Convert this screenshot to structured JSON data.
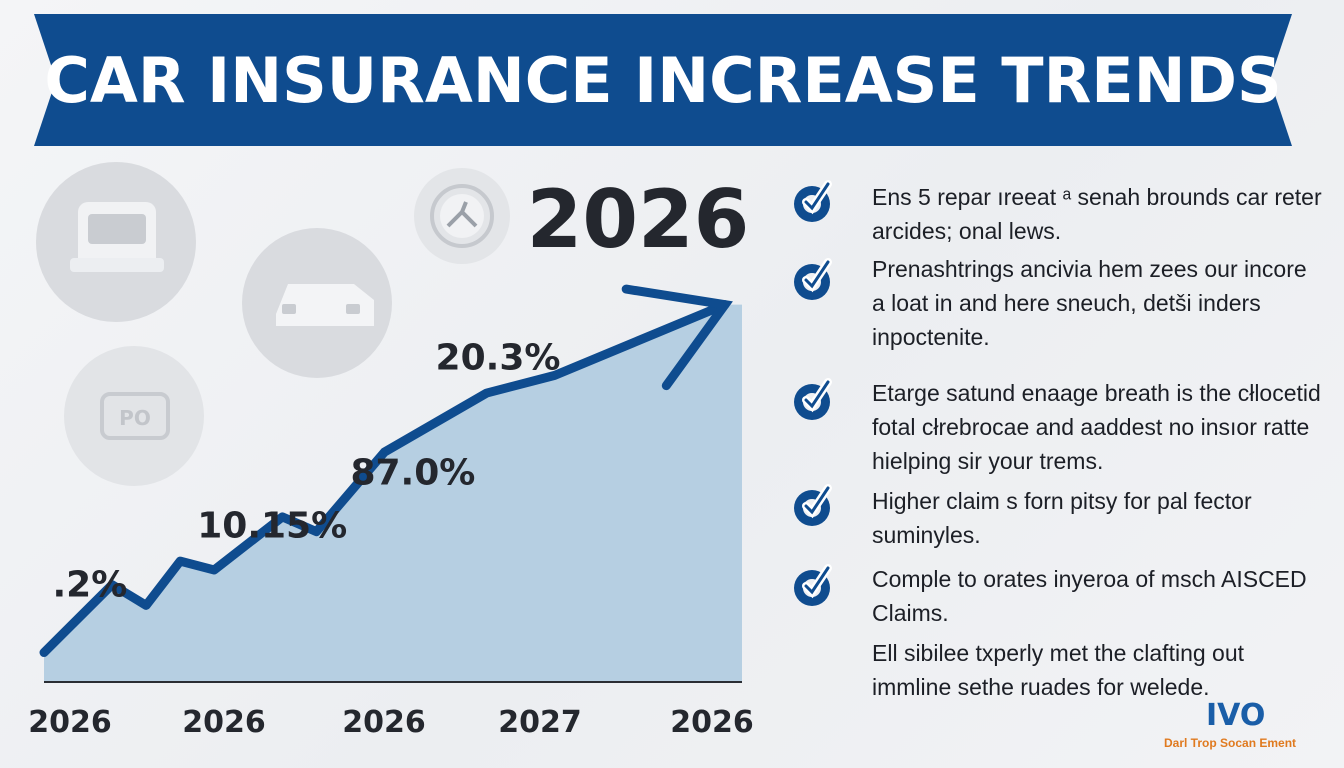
{
  "banner": {
    "title": "CAR INSURANCE INCREASE TRENDS",
    "color": "#0f4c8f"
  },
  "chart_data": {
    "type": "area",
    "title": "2026",
    "categories": [
      "2026",
      "2026",
      "2026",
      "2027",
      "2026"
    ],
    "series": [
      {
        "values": [
          1.0,
          3.3,
          2.6,
          4.1,
          3.8,
          5.6,
          5.1,
          7.8,
          9.8,
          10.4,
          12.8
        ]
      }
    ],
    "x": [
      0,
      0.4,
      0.6,
      0.8,
      1.0,
      1.4,
      1.6,
      2.0,
      2.6,
      3.0,
      4.0
    ],
    "point_labels": [
      {
        "text": ".2%",
        "x": 0.05,
        "y": 2.9
      },
      {
        "text": "10.15%",
        "x": 0.9,
        "y": 4.9
      },
      {
        "text": "87.0%",
        "x": 1.8,
        "y": 6.7
      },
      {
        "text": "20.3%",
        "x": 2.3,
        "y": 10.6
      }
    ],
    "fill_color": "#b6cfe2",
    "line_color": "#0f4c8f",
    "xlim": [
      0,
      4.1
    ],
    "ylim": [
      0,
      13.5
    ],
    "grid": false,
    "legend": "none"
  },
  "list": {
    "items": [
      "Ens 5 repar ıreeat ᵃ senah brounds car reter arcides; onal lews.",
      "Prenashtrings ancivia hem zees our incore a loat in and here sneuch, detši inders inpoctenite.",
      "Etarge satund enaage breath is the cłlocetid fotal cłrebrocae and aaddest no insıor ratte hielping sir your trems.",
      "Higher claim s forn pitsy for pal fector suminyles.",
      "Comple to orates inyeroa of msch AISCED Claims.",
      "Ell sibilee txperly met the clafting out immline sethe ruades for welede."
    ],
    "check_color": "#0f4c8f"
  },
  "logo": {
    "mark": "IVO",
    "name": "Darl Trop Socan Ement"
  }
}
